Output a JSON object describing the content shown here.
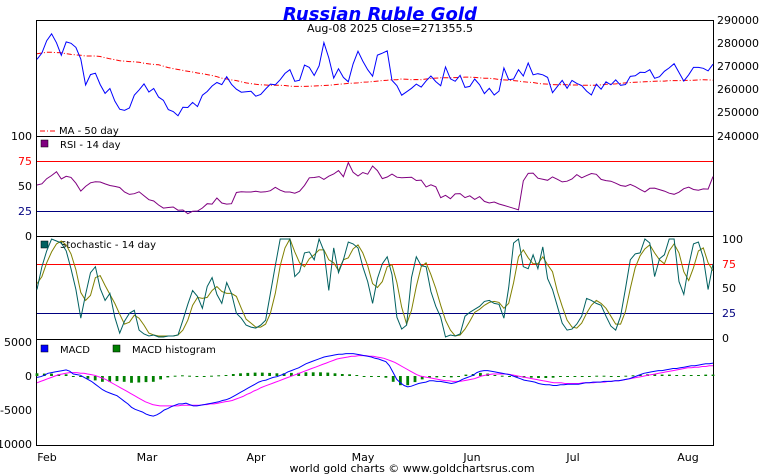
{
  "title": "Russian Ruble Gold",
  "subtitle": "Aug-08  2025   Close=271355.5",
  "footer": "world gold charts © www.goldchartsrus.com",
  "colors": {
    "title": "#0000ff",
    "price": "#0000ff",
    "ma": "#ff0000",
    "rsi": "#800080",
    "stoch_k": "#006060",
    "stoch_d": "#808000",
    "macd": "#0000ff",
    "signal": "#ff00ff",
    "hist": "#008000",
    "refline": "#ff0000"
  },
  "chart_data": [
    {
      "type": "line",
      "name": "price",
      "ylim": [
        240000,
        290000
      ],
      "y_ticks": [
        "290000",
        "280000",
        "270000",
        "260000",
        "250000",
        "240000"
      ],
      "legend": {
        "ma": "MA - 50 day"
      },
      "x_labels": [
        "Feb",
        "Mar",
        "Apr",
        "May",
        "Jun",
        "Jul",
        "Aug"
      ],
      "close_values": [
        273500,
        276200,
        281500,
        284500,
        280600,
        275200,
        281000,
        280400,
        278600,
        273600,
        262400,
        266900,
        267500,
        262600,
        258800,
        260900,
        255500,
        252000,
        251500,
        252500,
        258000,
        260300,
        262900,
        259400,
        260900,
        257200,
        255800,
        251800,
        251000,
        249200,
        252800,
        252700,
        254900,
        253100,
        258000,
        259600,
        262000,
        263500,
        262600,
        266000,
        262700,
        260600,
        259300,
        259500,
        259700,
        257600,
        258300,
        260700,
        262800,
        262500,
        264700,
        267400,
        269000,
        264000,
        264500,
        271000,
        270000,
        266500,
        270700,
        280700,
        274100,
        265400,
        269400,
        265700,
        263800,
        271500,
        277000,
        272700,
        269000,
        266200,
        275300,
        276100,
        277100,
        264400,
        262100,
        258000,
        259500,
        261000,
        262800,
        261500,
        264200,
        266300,
        263900,
        262100,
        270200,
        265100,
        264000,
        266600,
        261400,
        261800,
        265000,
        262500,
        258700,
        261000,
        258100,
        259800,
        269800,
        264700,
        265000,
        269000,
        266300,
        271900,
        266800,
        267300,
        266800,
        265700,
        259100,
        261800,
        264400,
        261000,
        264400,
        263100,
        262200,
        259800,
        258100,
        262800,
        260600,
        263800,
        262500,
        264600,
        262300,
        262600,
        266100,
        266400,
        267900,
        267800,
        269000,
        265300,
        266000,
        268300,
        269800,
        271600,
        267800,
        264100,
        266800,
        270000,
        270000,
        269600,
        268500,
        271400
      ]
    },
    {
      "type": "line",
      "name": "ma",
      "ylim": [
        240000,
        290000
      ],
      "values": [
        275900,
        276200,
        276500,
        276500,
        276400,
        276300,
        275900,
        275600,
        275400,
        275200,
        274900,
        274900,
        274900,
        274700,
        274200,
        273700,
        273300,
        272900,
        272700,
        272500,
        272400,
        272200,
        271800,
        271500,
        271300,
        271100,
        270500,
        269900,
        269500,
        269100,
        268700,
        268300,
        268000,
        267600,
        267300,
        266900,
        266500,
        266000,
        265400,
        265000,
        264600,
        264300,
        263800,
        263300,
        263000,
        262700,
        262500,
        262400,
        262300,
        262300,
        262300,
        262200,
        261900,
        261800,
        261800,
        261800,
        261900,
        262000,
        262100,
        262200,
        262300,
        262500,
        262700,
        262900,
        263100,
        263200,
        263300,
        263600,
        263700,
        263900,
        264100,
        264300,
        264500,
        264700,
        264700,
        265000,
        264900,
        264700,
        264800,
        264700,
        265000,
        265200,
        265400,
        265500,
        265500,
        265500,
        265600,
        265700,
        265800,
        265800,
        265700,
        265500,
        265300,
        265300,
        265100,
        264800,
        264600,
        264500,
        264300,
        264100,
        263800,
        263600,
        263500,
        263100,
        262900,
        262800,
        262600,
        262500,
        262600,
        262500,
        262400,
        262400,
        262300,
        262300,
        262300,
        262300,
        262500,
        262700,
        262800,
        262900,
        263100,
        263300,
        263500,
        263600,
        263700,
        263800,
        263900,
        264000,
        264100,
        264100,
        264300,
        264300,
        264300,
        264400,
        264400,
        264500,
        264600,
        264700,
        264600,
        264500
      ]
    },
    {
      "type": "line",
      "name": "rsi",
      "legend": "RSI - 14 day",
      "ylim": [
        0,
        100
      ],
      "y_ticks_left": [
        "100",
        "75",
        "50",
        "25",
        "0"
      ],
      "ref_lines": [
        25,
        75
      ],
      "values": [
        51,
        52.2,
        57.3,
        60.5,
        64.3,
        57,
        59.7,
        58.6,
        52.8,
        44.9,
        49.6,
        53.2,
        54.2,
        54,
        52.1,
        50.5,
        49.6,
        48.5,
        44,
        41.6,
        42.3,
        44.2,
        40.2,
        36.3,
        35,
        31,
        27.9,
        28.5,
        29,
        25.8,
        26,
        22.3,
        24.7,
        25,
        28,
        32.3,
        31.9,
        38,
        33,
        31.9,
        32.3,
        43.5,
        44.3,
        44,
        44,
        44.7,
        43.9,
        44.2,
        45.3,
        48.7,
        45.8,
        44,
        44,
        42.8,
        44.8,
        50.6,
        58.2,
        58.5,
        59.4,
        56.6,
        59.8,
        62,
        65.4,
        59.3,
        73.4,
        63.7,
        60,
        63.5,
        61.8,
        70,
        65.4,
        57.4,
        59,
        61.9,
        58.8,
        58.2,
        58.5,
        58.8,
        55.5,
        55.9,
        49.1,
        51.2,
        49.2,
        38.3,
        40.7,
        37.3,
        42.1,
        42.4,
        38.4,
        40.2,
        36.6,
        39.4,
        34.6,
        33,
        34,
        32,
        30.6,
        29.2,
        27.7,
        26.2,
        55.1,
        62.6,
        62.9,
        57.8,
        56.7,
        55.7,
        59.1,
        56.7,
        54.1,
        54.8,
        57,
        61.4,
        58.2,
        60.4,
        62.5,
        61.7,
        56.6,
        55.4,
        54.8,
        52.8,
        50.5,
        49.7,
        51.6,
        49.4,
        46.6,
        44.1,
        47.7,
        47.9,
        46.4,
        44.9,
        42.8,
        41.7,
        43.8,
        47.3,
        48.8,
        46.5,
        45.8,
        47.1,
        46.9,
        59.4
      ]
    },
    {
      "type": "line",
      "name": "stochastic",
      "legend": "Stochastic - 14 day",
      "ylim": [
        0,
        100
      ],
      "y_ticks": [
        "100",
        "75",
        "50",
        "25",
        "0"
      ],
      "ref_lines": [
        25,
        75
      ],
      "k_values": [
        49,
        72,
        88,
        100,
        98,
        96,
        88,
        70,
        49,
        20,
        44,
        66,
        72,
        50,
        38,
        45,
        21,
        5,
        17,
        25,
        28,
        8,
        4,
        2,
        3,
        1,
        1,
        2,
        2,
        3,
        18,
        34,
        48,
        42,
        30,
        52,
        61,
        44,
        35,
        56,
        45,
        25,
        20,
        13,
        11,
        10,
        13,
        18,
        45,
        73,
        100,
        100,
        100,
        62,
        67,
        86,
        87,
        79,
        100,
        88,
        48,
        91,
        66,
        79,
        97,
        95,
        91,
        72,
        57,
        35,
        60,
        75,
        82,
        64,
        21,
        9,
        13,
        61,
        82,
        73,
        72,
        47,
        32,
        21,
        1,
        3,
        2,
        4,
        22,
        26,
        29,
        32,
        37,
        38,
        35,
        34,
        20,
        51,
        96,
        100,
        72,
        70,
        84,
        70,
        92,
        60,
        49,
        32,
        15,
        8,
        9,
        14,
        22,
        40,
        38,
        35,
        33,
        22,
        12,
        8,
        22,
        50,
        79,
        85,
        86,
        100,
        96,
        62,
        80,
        84,
        100,
        100,
        57,
        44,
        73,
        95,
        97,
        81,
        49,
        75
      ]
    },
    {
      "type": "line",
      "name": "stochastic_d",
      "ylim": [
        0,
        100
      ],
      "d_values": [
        55,
        62,
        76,
        87,
        95,
        98,
        94,
        85,
        69,
        46,
        38,
        43,
        61,
        63,
        53,
        44,
        35,
        24,
        14,
        16,
        23,
        20,
        13,
        5,
        3,
        2,
        2,
        2,
        2,
        3,
        8,
        18,
        33,
        41,
        40,
        41,
        48,
        52,
        47,
        45,
        45,
        42,
        30,
        19,
        15,
        11,
        11,
        14,
        25,
        45,
        73,
        91,
        100,
        87,
        76,
        72,
        80,
        84,
        89,
        89,
        79,
        76,
        68,
        79,
        81,
        90,
        94,
        86,
        73,
        55,
        51,
        57,
        72,
        74,
        56,
        31,
        14,
        28,
        52,
        72,
        76,
        64,
        50,
        33,
        18,
        8,
        2,
        3,
        9,
        17,
        26,
        29,
        33,
        36,
        37,
        36,
        30,
        35,
        56,
        82,
        89,
        81,
        75,
        75,
        82,
        74,
        67,
        47,
        32,
        18,
        11,
        10,
        15,
        25,
        33,
        38,
        35,
        30,
        22,
        14,
        14,
        27,
        50,
        71,
        83,
        90,
        94,
        86,
        79,
        75,
        88,
        95,
        86,
        67,
        58,
        71,
        88,
        91,
        76,
        68
      ]
    },
    {
      "type": "line",
      "name": "macd",
      "legend": [
        "MACD",
        "MACD histogram"
      ],
      "ylim": [
        -10000,
        5000
      ],
      "y_ticks": [
        "5000",
        "0",
        "-5000",
        "-10000"
      ],
      "macd_values": [
        -200,
        -100,
        100,
        400,
        500,
        600,
        700,
        800,
        900,
        700,
        300,
        200,
        100,
        -200,
        -500,
        -800,
        -1200,
        -1600,
        -2000,
        -2300,
        -2500,
        -2700,
        -2900,
        -3300,
        -3700,
        -4100,
        -4600,
        -4900,
        -5100,
        -5300,
        -5600,
        -5800,
        -5900,
        -5700,
        -5400,
        -5000,
        -4800,
        -4500,
        -4300,
        -4100,
        -4100,
        -4000,
        -4200,
        -4400,
        -4400,
        -4300,
        -4200,
        -4100,
        -4000,
        -3900,
        -3800,
        -3600,
        -3500,
        -3300,
        -3000,
        -2700,
        -2400,
        -2100,
        -1800,
        -1500,
        -1200,
        -900,
        -700,
        -600,
        -400,
        -200,
        -100,
        100,
        300,
        600,
        800,
        1000,
        1200,
        1500,
        1800,
        2000,
        2200,
        2400,
        2600,
        2800,
        2900,
        3000,
        3100,
        3200,
        3200,
        3300,
        3300,
        3300,
        3200,
        3100,
        3000,
        2900,
        2800,
        2600,
        2500,
        2300,
        2100,
        1500,
        500,
        -500,
        -1000,
        -1400,
        -1600,
        -1500,
        -1300,
        -1100,
        -1000,
        -900,
        -700,
        -700,
        -800,
        -800,
        -900,
        -1000,
        -1100,
        -1000,
        -800,
        -500,
        -300,
        -100,
        100,
        500,
        700,
        800,
        800,
        700,
        600,
        500,
        400,
        300,
        200,
        0,
        -200,
        -400,
        -600,
        -700,
        -800,
        -900,
        -1100,
        -1200,
        -1300,
        -1300,
        -1400,
        -1400,
        -1300,
        -1300,
        -1200,
        -1200,
        -1200,
        -1200,
        -1100,
        -1000,
        -1000,
        -900,
        -900,
        -900,
        -800,
        -800,
        -800,
        -700,
        -700,
        -600,
        -500,
        -400,
        -200,
        0,
        200,
        400,
        500,
        600,
        700,
        800,
        800,
        900,
        1000,
        1100,
        1100,
        1200,
        1300,
        1400,
        1500,
        1500,
        1600,
        1700,
        1800,
        1800,
        1900
      ]
    },
    {
      "type": "line",
      "name": "macd_signal",
      "ylim": [
        -10000,
        5000
      ],
      "signal_values": [
        -1000,
        -800,
        -600,
        -400,
        -200,
        0,
        200,
        300,
        400,
        500,
        500,
        500,
        400,
        400,
        300,
        200,
        100,
        -100,
        -300,
        -500,
        -800,
        -1100,
        -1400,
        -1700,
        -2000,
        -2300,
        -2600,
        -2900,
        -3200,
        -3500,
        -3800,
        -4000,
        -4200,
        -4300,
        -4400,
        -4400,
        -4400,
        -4400,
        -4400,
        -4400,
        -4300,
        -4300,
        -4300,
        -4300,
        -4300,
        -4300,
        -4200,
        -4200,
        -4100,
        -4100,
        -4000,
        -3900,
        -3800,
        -3700,
        -3600,
        -3400,
        -3200,
        -3000,
        -2700,
        -2500,
        -2200,
        -2000,
        -1700,
        -1500,
        -1300,
        -1100,
        -900,
        -700,
        -500,
        -300,
        -100,
        100,
        300,
        500,
        700,
        900,
        1100,
        1300,
        1500,
        1700,
        1900,
        2100,
        2300,
        2500,
        2600,
        2700,
        2800,
        2900,
        2900,
        3000,
        3000,
        3000,
        2900,
        2900,
        2800,
        2700,
        2600,
        2400,
        2200,
        2000,
        1700,
        1400,
        1100,
        800,
        500,
        200,
        0,
        -100,
        -200,
        -300,
        -400,
        -500,
        -600,
        -700,
        -700,
        -800,
        -800,
        -800,
        -700,
        -600,
        -500,
        -400,
        -200,
        0,
        100,
        200,
        300,
        300,
        300,
        300,
        300,
        200,
        100,
        0,
        -100,
        -200,
        -300,
        -400,
        -500,
        -600,
        -700,
        -800,
        -900,
        -1000,
        -1000,
        -1000,
        -1100,
        -1100,
        -1100,
        -1100,
        -1100,
        -1000,
        -1000,
        -1000,
        -1000,
        -900,
        -900,
        -900,
        -800,
        -800,
        -700,
        -700,
        -600,
        -500,
        -400,
        -300,
        -200,
        -100,
        0,
        100,
        200,
        300,
        400,
        500,
        600,
        700,
        800,
        900,
        1000,
        1100,
        1200,
        1200,
        1300,
        1300,
        1400,
        1400,
        1500,
        1500
      ]
    }
  ]
}
